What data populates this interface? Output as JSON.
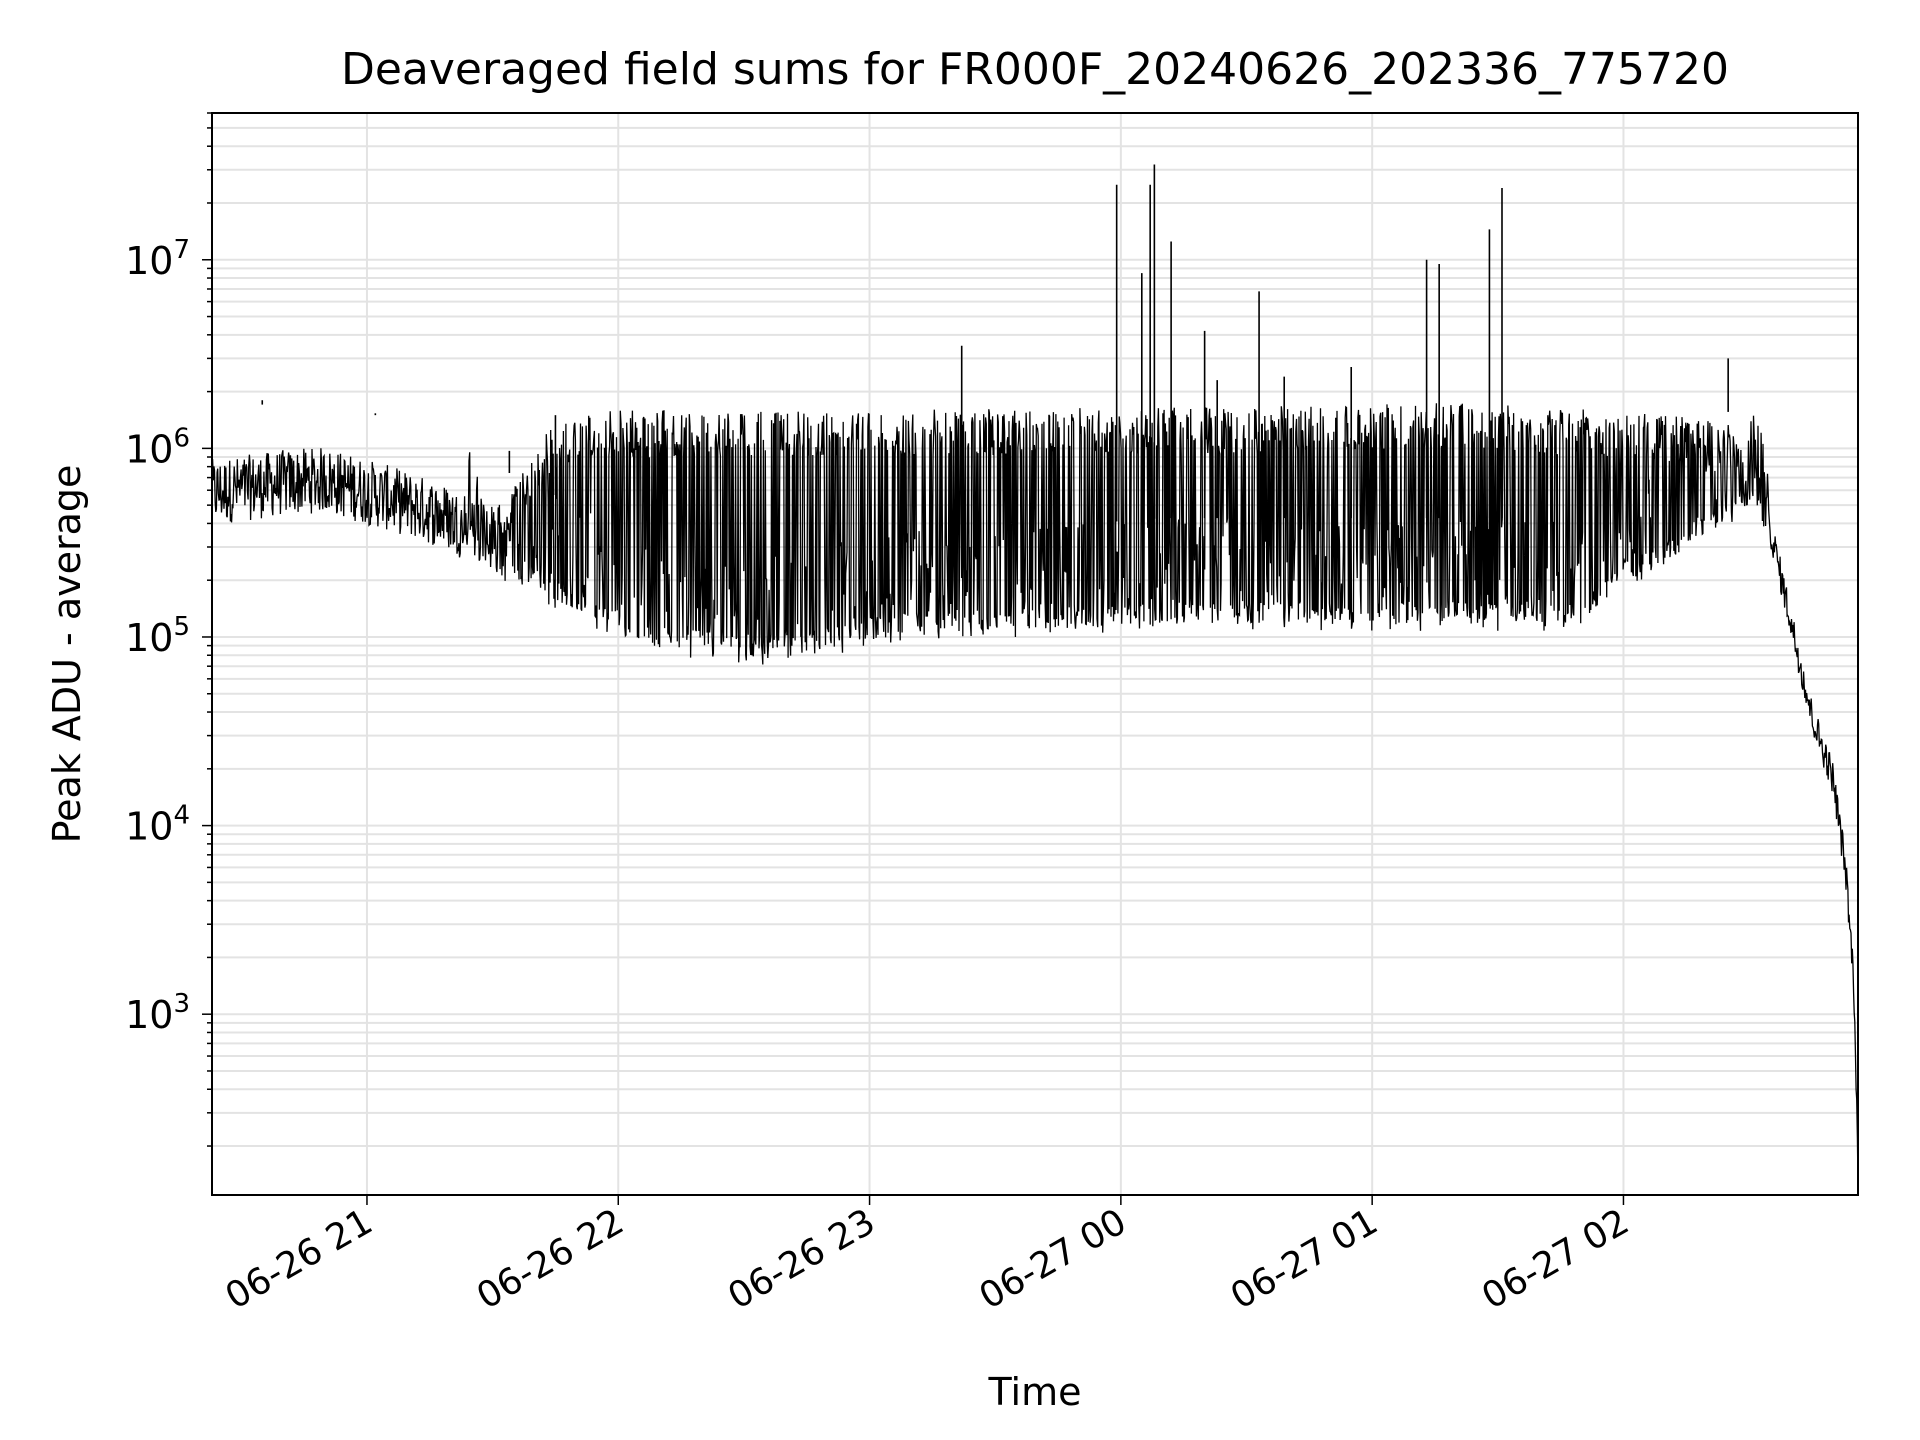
{
  "chart_data": {
    "type": "line",
    "title": "Deaveraged field sums for FR000F_20240626_202336_775720",
    "xlabel": "Time",
    "ylabel": "Peak ADU - average",
    "yscale": "log",
    "xlim": [
      "2024-06-26 20:23",
      "2024-06-27 02:56"
    ],
    "ylim": [
      110,
      60000000
    ],
    "grid": true,
    "line_color": "#000000",
    "grid_color": "#e3e3e3",
    "x_ticks": [
      {
        "t": "2024-06-26 21:00",
        "label": "06-26 21"
      },
      {
        "t": "2024-06-26 22:00",
        "label": "06-26 22"
      },
      {
        "t": "2024-06-26 23:00",
        "label": "06-26 23"
      },
      {
        "t": "2024-06-27 00:00",
        "label": "06-27 00"
      },
      {
        "t": "2024-06-27 01:00",
        "label": "06-27 01"
      },
      {
        "t": "2024-06-27 02:00",
        "label": "06-27 02"
      }
    ],
    "y_ticks": [
      {
        "v": 1000,
        "base": "10",
        "exp": "3"
      },
      {
        "v": 10000,
        "base": "10",
        "exp": "4"
      },
      {
        "v": 100000,
        "base": "10",
        "exp": "5"
      },
      {
        "v": 1000000,
        "base": "10",
        "exp": "6"
      },
      {
        "v": 10000000,
        "base": "10",
        "exp": "7"
      }
    ],
    "series": [
      {
        "x": [
          "2024-06-26 20:23",
          "2024-06-26 20:30",
          "2024-06-26 20:40",
          "2024-06-26 20:50",
          "2024-06-26 21:00",
          "2024-06-26 21:10",
          "2024-06-26 21:20",
          "2024-06-26 21:30",
          "2024-06-26 21:40",
          "2024-06-26 21:50",
          "2024-06-26 22:00",
          "2024-06-26 22:10",
          "2024-06-26 22:20",
          "2024-06-26 22:30",
          "2024-06-26 22:40",
          "2024-06-26 22:50",
          "2024-06-26 23:00",
          "2024-06-26 23:10",
          "2024-06-26 23:20",
          "2024-06-26 23:30",
          "2024-06-26 23:40",
          "2024-06-26 23:50",
          "2024-06-27 00:00",
          "2024-06-27 00:10",
          "2024-06-27 00:20",
          "2024-06-27 00:30",
          "2024-06-27 00:40",
          "2024-06-27 00:50",
          "2024-06-27 01:00",
          "2024-06-27 01:10",
          "2024-06-27 01:20",
          "2024-06-27 01:30",
          "2024-06-27 01:40",
          "2024-06-27 01:50",
          "2024-06-27 02:00",
          "2024-06-27 02:10",
          "2024-06-27 02:20",
          "2024-06-27 02:30",
          "2024-06-27 02:35",
          "2024-06-27 02:40",
          "2024-06-27 02:45",
          "2024-06-27 02:50",
          "2024-06-27 02:53",
          "2024-06-27 02:55",
          "2024-06-27 02:56"
        ],
        "y": [
          500000,
          520000,
          560000,
          580000,
          500000,
          430000,
          360000,
          260000,
          200000,
          160000,
          120000,
          100000,
          95000,
          90000,
          90000,
          100000,
          110000,
          120000,
          125000,
          125000,
          125000,
          125000,
          130000,
          135000,
          135000,
          135000,
          135000,
          135000,
          135000,
          135000,
          135000,
          135000,
          135000,
          135000,
          220000,
          280000,
          420000,
          580000,
          380000,
          120000,
          38000,
          18000,
          6000,
          1500,
          150
        ]
      }
    ],
    "spikes": [
      {
        "x": "2024-06-26 20:35",
        "y": 1800000
      },
      {
        "x": "2024-06-26 21:02",
        "y": 1500000
      },
      {
        "x": "2024-06-26 21:34",
        "y": 970000
      },
      {
        "x": "2024-06-26 21:45",
        "y": 1500000
      },
      {
        "x": "2024-06-26 23:22",
        "y": 3500000
      },
      {
        "x": "2024-06-26 23:59",
        "y": 25000000
      },
      {
        "x": "2024-06-27 00:05",
        "y": 8500000
      },
      {
        "x": "2024-06-27 00:07",
        "y": 25000000
      },
      {
        "x": "2024-06-27 00:08",
        "y": 32000000
      },
      {
        "x": "2024-06-27 00:12",
        "y": 12500000
      },
      {
        "x": "2024-06-27 00:20",
        "y": 4200000
      },
      {
        "x": "2024-06-27 00:23",
        "y": 2300000
      },
      {
        "x": "2024-06-27 00:33",
        "y": 6800000
      },
      {
        "x": "2024-06-27 00:39",
        "y": 2400000
      },
      {
        "x": "2024-06-27 00:55",
        "y": 2700000
      },
      {
        "x": "2024-06-27 01:13",
        "y": 10000000
      },
      {
        "x": "2024-06-27 01:16",
        "y": 9500000
      },
      {
        "x": "2024-06-27 01:28",
        "y": 14500000
      },
      {
        "x": "2024-06-27 01:31",
        "y": 24000000
      },
      {
        "x": "2024-06-27 02:25",
        "y": 3000000
      }
    ]
  }
}
